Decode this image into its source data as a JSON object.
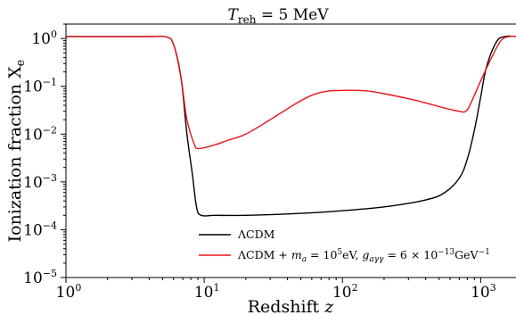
{
  "chart_data": {
    "type": "line",
    "title": "T_reh = 5 MeV",
    "title_parts": {
      "T": "T",
      "sub": "reh",
      "rest": " = 5 MeV"
    },
    "xlabel": "Redshift z",
    "ylabel": "Ionization fraction X_e",
    "ylabel_parts": {
      "main": "Ionization fraction X",
      "sub": "e"
    },
    "x_scale": "log",
    "y_scale": "log",
    "xlim": [
      1,
      1800
    ],
    "ylim": [
      1e-05,
      2
    ],
    "x_ticks": [
      {
        "value": 1,
        "base": "10",
        "exp": "0"
      },
      {
        "value": 10,
        "base": "10",
        "exp": "1"
      },
      {
        "value": 100,
        "base": "10",
        "exp": "2"
      },
      {
        "value": 1000,
        "base": "10",
        "exp": "3"
      }
    ],
    "y_ticks": [
      {
        "value": 1,
        "base": "10",
        "exp": "0"
      },
      {
        "value": 0.1,
        "base": "10",
        "exp": "−1"
      },
      {
        "value": 0.01,
        "base": "10",
        "exp": "−2"
      },
      {
        "value": 0.001,
        "base": "10",
        "exp": "−3"
      },
      {
        "value": 0.0001,
        "base": "10",
        "exp": "−4"
      },
      {
        "value": 1e-05,
        "base": "10",
        "exp": "−5"
      }
    ],
    "legend_position": "lower-right",
    "grid": false,
    "series": [
      {
        "name": "ΛCDM",
        "color": "#000000",
        "x": [
          1,
          2,
          4,
          5.3,
          6,
          6.8,
          7.5,
          8.2,
          8.8,
          9.5,
          12,
          20,
          50,
          100,
          200,
          400,
          550,
          700,
          800,
          900,
          1000,
          1100,
          1300,
          1500,
          1800
        ],
        "y": [
          1.1,
          1.1,
          1.1,
          1.08,
          0.75,
          0.15,
          0.01,
          0.0015,
          0.0003,
          0.0002,
          0.0002,
          0.0002,
          0.00022,
          0.00025,
          0.0003,
          0.00042,
          0.0006,
          0.0012,
          0.003,
          0.012,
          0.06,
          0.25,
          0.85,
          1.1,
          1.1
        ]
      },
      {
        "name": "ΛCDM + m_a = 10^5 eV, g_aγγ = 6 × 10^-13 GeV^-1",
        "color": "#e8141c",
        "x": [
          1,
          2,
          4,
          5.3,
          6,
          6.8,
          7.5,
          8.5,
          9,
          10,
          12,
          15,
          20,
          30,
          50,
          70,
          100,
          150,
          200,
          300,
          400,
          550,
          700,
          780,
          850,
          1000,
          1200,
          1400,
          1600,
          1800
        ],
        "y": [
          1.1,
          1.1,
          1.1,
          1.08,
          0.75,
          0.15,
          0.02,
          0.006,
          0.005,
          0.0052,
          0.006,
          0.0075,
          0.01,
          0.02,
          0.05,
          0.075,
          0.082,
          0.08,
          0.07,
          0.055,
          0.045,
          0.035,
          0.03,
          0.03,
          0.045,
          0.13,
          0.4,
          0.9,
          1.1,
          1.1
        ]
      }
    ],
    "legend_items": [
      {
        "text": "ΛCDM",
        "color": "#000000"
      },
      {
        "text_parts": {
          "a": "ΛCDM + ",
          "m": "m",
          "msub": "a",
          "b": " = 10",
          "bexp": "5",
          "c": "eV, ",
          "g": "g",
          "gsub": "aγγ",
          "d": " = 6 × 10",
          "dexp": "−13",
          "e": "GeV",
          "eexp": "−1"
        },
        "color": "#e8141c"
      }
    ]
  }
}
